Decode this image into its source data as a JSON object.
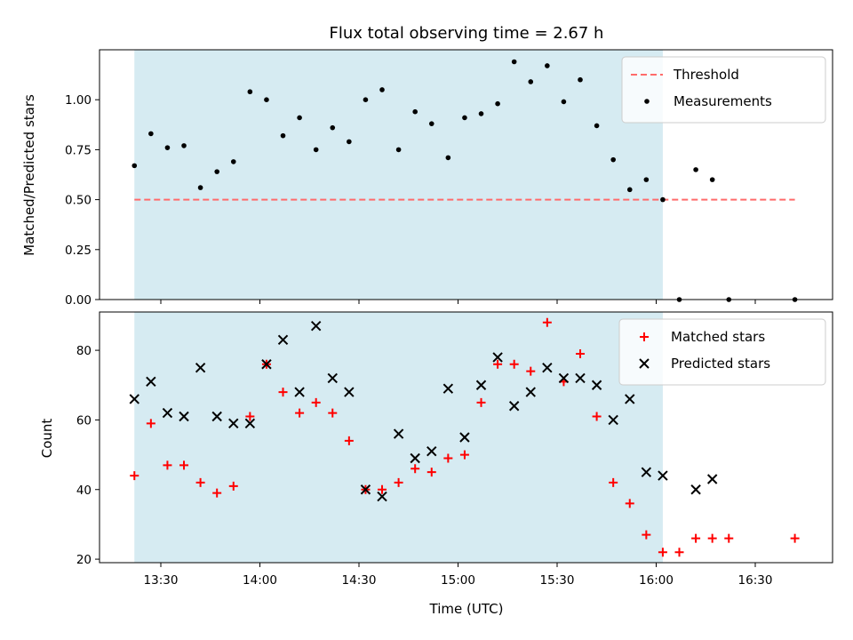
{
  "chart_data": [
    {
      "type": "scatter",
      "title": "Flux total observing time = 2.67 h",
      "xlabel": "",
      "ylabel": "Matched/Predicted stars",
      "ylim": [
        0,
        1.25
      ],
      "yticks": [
        0.0,
        0.25,
        0.5,
        0.75,
        1.0
      ],
      "ytick_labels": [
        "0.00",
        "0.25",
        "0.50",
        "0.75",
        "1.00"
      ],
      "xticks": [
        "13:30",
        "14:00",
        "14:30",
        "15:00",
        "15:30",
        "16:00",
        "16:30"
      ],
      "shaded_region": {
        "x_start": "13:22",
        "x_end": "16:02",
        "color": "#add8e6"
      },
      "legend": {
        "position": "top-right",
        "entries": [
          {
            "label": "Threshold",
            "style": "dashed-line",
            "color": "#ff6b6b"
          },
          {
            "label": "Measurements",
            "style": "dot",
            "color": "#000000"
          }
        ]
      },
      "series": [
        {
          "name": "Threshold",
          "kind": "line",
          "color": "#ff6b6b",
          "x": [
            "13:22",
            "16:42"
          ],
          "y": [
            0.5,
            0.5
          ]
        },
        {
          "name": "Measurements",
          "kind": "scatter",
          "color": "#000000",
          "x": [
            "13:22",
            "13:27",
            "13:32",
            "13:37",
            "13:42",
            "13:47",
            "13:52",
            "13:57",
            "14:02",
            "14:07",
            "14:12",
            "14:17",
            "14:22",
            "14:27",
            "14:32",
            "14:37",
            "14:42",
            "14:47",
            "14:52",
            "14:57",
            "15:02",
            "15:07",
            "15:12",
            "15:17",
            "15:22",
            "15:27",
            "15:32",
            "15:37",
            "15:42",
            "15:47",
            "15:52",
            "15:57",
            "16:02",
            "16:07",
            "16:12",
            "16:17",
            "16:22",
            "16:42"
          ],
          "y": [
            0.67,
            0.83,
            0.76,
            0.77,
            0.56,
            0.64,
            0.69,
            1.04,
            1.0,
            0.82,
            0.91,
            0.75,
            0.86,
            0.79,
            1.0,
            1.05,
            0.75,
            0.94,
            0.88,
            0.71,
            0.91,
            0.93,
            0.98,
            1.19,
            1.09,
            1.17,
            0.99,
            1.1,
            0.87,
            0.7,
            0.55,
            0.6,
            0.5,
            0.0,
            0.65,
            0.6,
            0.0,
            0.0
          ]
        }
      ]
    },
    {
      "type": "scatter",
      "title": "",
      "xlabel": "Time (UTC)",
      "ylabel": "Count",
      "ylim": [
        19,
        91
      ],
      "yticks": [
        20,
        40,
        60,
        80
      ],
      "ytick_labels": [
        "20",
        "40",
        "60",
        "80"
      ],
      "xticks": [
        "13:30",
        "14:00",
        "14:30",
        "15:00",
        "15:30",
        "16:00",
        "16:30"
      ],
      "shaded_region": {
        "x_start": "13:22",
        "x_end": "16:02",
        "color": "#add8e6"
      },
      "legend": {
        "position": "top-right",
        "entries": [
          {
            "label": "Matched stars",
            "style": "plus",
            "color": "#ff0000"
          },
          {
            "label": "Predicted stars",
            "style": "x",
            "color": "#000000"
          }
        ]
      },
      "series": [
        {
          "name": "Matched stars",
          "kind": "plus",
          "color": "#ff0000",
          "x": [
            "13:22",
            "13:27",
            "13:32",
            "13:37",
            "13:42",
            "13:47",
            "13:52",
            "13:57",
            "14:02",
            "14:07",
            "14:12",
            "14:17",
            "14:22",
            "14:27",
            "14:32",
            "14:37",
            "14:42",
            "14:47",
            "14:52",
            "14:57",
            "15:02",
            "15:07",
            "15:12",
            "15:17",
            "15:22",
            "15:27",
            "15:32",
            "15:37",
            "15:42",
            "15:47",
            "15:52",
            "15:57",
            "16:02",
            "16:07",
            "16:12",
            "16:17",
            "16:22",
            "16:42"
          ],
          "y": [
            44,
            59,
            47,
            47,
            42,
            39,
            41,
            61,
            76,
            68,
            62,
            65,
            62,
            54,
            40,
            40,
            42,
            46,
            45,
            49,
            50,
            65,
            76,
            76,
            74,
            88,
            71,
            79,
            61,
            42,
            36,
            27,
            22,
            22,
            26,
            26,
            26,
            26
          ]
        },
        {
          "name": "Predicted stars",
          "kind": "x",
          "color": "#000000",
          "x": [
            "13:22",
            "13:27",
            "13:32",
            "13:37",
            "13:42",
            "13:47",
            "13:52",
            "13:57",
            "14:02",
            "14:07",
            "14:12",
            "14:17",
            "14:22",
            "14:27",
            "14:32",
            "14:37",
            "14:42",
            "14:47",
            "14:52",
            "14:57",
            "15:02",
            "15:07",
            "15:12",
            "15:17",
            "15:22",
            "15:27",
            "15:32",
            "15:37",
            "15:42",
            "15:47",
            "15:52",
            "15:57",
            "16:02",
            "16:12",
            "16:17"
          ],
          "y": [
            66,
            71,
            62,
            61,
            75,
            61,
            59,
            59,
            76,
            83,
            68,
            87,
            72,
            68,
            40,
            38,
            56,
            49,
            51,
            69,
            55,
            70,
            78,
            64,
            68,
            75,
            72,
            72,
            70,
            60,
            66,
            45,
            44,
            40,
            43
          ]
        }
      ]
    }
  ]
}
